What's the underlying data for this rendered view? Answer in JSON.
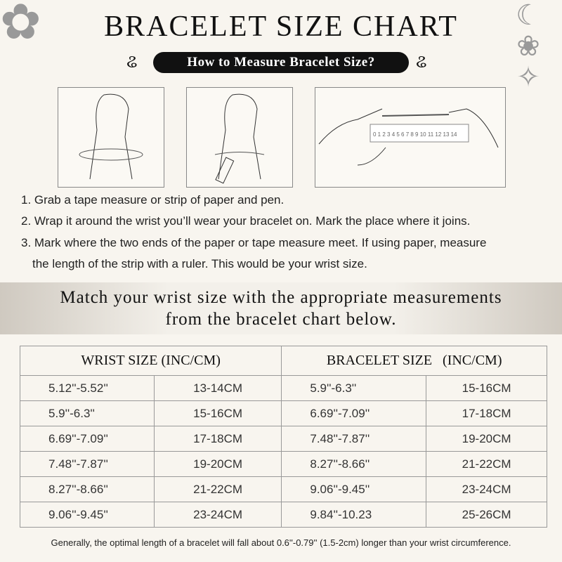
{
  "title": "BRACELET SIZE CHART",
  "subtitle": "How to Measure Bracelet Size?",
  "steps": [
    "1. Grab a tape measure or strip of paper and pen.",
    "2. Wrap it around the wrist you’ll wear your bracelet on. Mark the place where it joins.",
    "3. Mark where the two ends of the paper or tape measure meet. If using paper, measure",
    "the length of the strip with a ruler. This would be your wrist size."
  ],
  "ruler_numbers": "0 1 2 3 4 5 6 7 8 9 10 11 12 13 14",
  "banner": [
    "Match your wrist size with the appropriate measurements",
    "from the bracelet chart below."
  ],
  "table": {
    "headers": [
      "WRIST SIZE (INC/CM)",
      "BRACELET SIZE   (INC/CM)"
    ],
    "rows": [
      [
        "5.12''-5.52''",
        "13-14CM",
        "5.9''-6.3''",
        "15-16CM"
      ],
      [
        "5.9''-6.3''",
        "15-16CM",
        "6.69''-7.09''",
        "17-18CM"
      ],
      [
        "6.69''-7.09''",
        "17-18CM",
        "7.48''-7.87''",
        "19-20CM"
      ],
      [
        "7.48''-7.87''",
        "19-20CM",
        "8.27''-8.66''",
        "21-22CM"
      ],
      [
        "8.27''-8.66''",
        "21-22CM",
        "9.06''-9.45''",
        "23-24CM"
      ],
      [
        "9.06''-9.45''",
        "23-24CM",
        "9.84''-10.23",
        "25-26CM"
      ]
    ]
  },
  "footnote": "Generally, the optimal length of a bracelet will fall about 0.6''-0.79'' (1.5-2cm) longer than your wrist circumference."
}
